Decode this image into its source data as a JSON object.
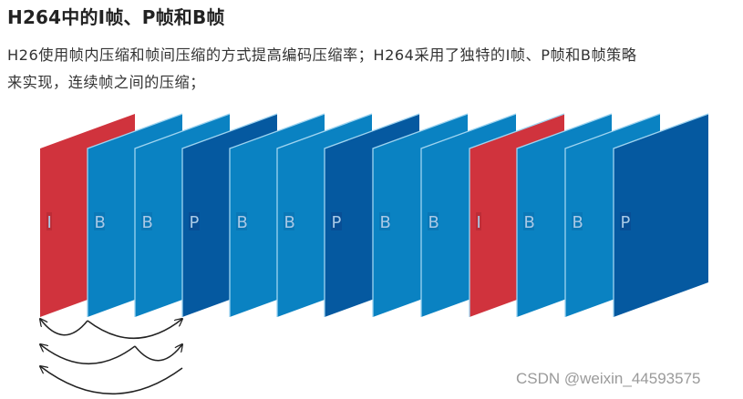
{
  "article": {
    "title": "H264中的I帧、P帧和B帧",
    "paragraph_line1": "H26使用帧内压缩和帧间压缩的方式提高编码压缩率；H264采用了独特的I帧、P帧和B帧策略",
    "paragraph_line2": "来实现，连续帧之间的压缩；"
  },
  "diagram": {
    "frames": [
      {
        "label": "I",
        "type": "I"
      },
      {
        "label": "B",
        "type": "B"
      },
      {
        "label": "B",
        "type": "B"
      },
      {
        "label": "P",
        "type": "P"
      },
      {
        "label": "B",
        "type": "B"
      },
      {
        "label": "B",
        "type": "B"
      },
      {
        "label": "P",
        "type": "P"
      },
      {
        "label": "B",
        "type": "B"
      },
      {
        "label": "B",
        "type": "B"
      },
      {
        "label": "I",
        "type": "I"
      },
      {
        "label": "B",
        "type": "B"
      },
      {
        "label": "B",
        "type": "B"
      },
      {
        "label": "P",
        "type": "P"
      }
    ],
    "colors": {
      "I": "#d0333d",
      "B": "#0a82c2",
      "P": "#0559a0",
      "edge_highlight": "#9fd4f0",
      "label_text": "#a9c9e6",
      "arrow": "#222222"
    },
    "arrows": [
      {
        "from_index": 1,
        "to_index": 0,
        "row": 1
      },
      {
        "from_index": 1,
        "to_index": 3,
        "row": 1
      },
      {
        "from_index": 2,
        "to_index": 0,
        "row": 2
      },
      {
        "from_index": 2,
        "to_index": 3,
        "row": 2
      },
      {
        "from_index": 3,
        "to_index": 0,
        "row": 3
      }
    ]
  },
  "watermark": "CSDN @weixin_44593575"
}
